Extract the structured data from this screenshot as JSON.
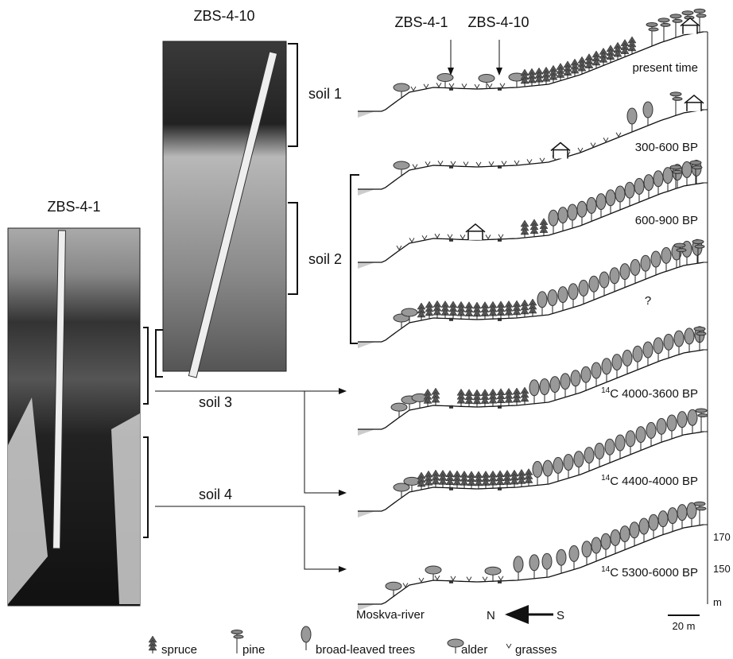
{
  "photos": [
    {
      "title": "ZBS-4-10"
    },
    {
      "title": "ZBS-4-1"
    }
  ],
  "soils": [
    "soil 1",
    "soil 2",
    "soil 3",
    "soil 4"
  ],
  "profile_labels": {
    "left": "ZBS-4-1",
    "right": "ZBS-4-10"
  },
  "periods": [
    {
      "label": "present time"
    },
    {
      "label": "300-600 BP"
    },
    {
      "label": "600-900 BP"
    },
    {
      "label": "?"
    },
    {
      "isotope": "14",
      "element": "C",
      "range": "4000-3600 BP"
    },
    {
      "isotope": "14",
      "element": "C",
      "range": "4400-4000 BP"
    },
    {
      "isotope": "14",
      "element": "C",
      "range": "5300-6000 BP"
    }
  ],
  "elevation_scale": {
    "ticks": [
      "170",
      "150"
    ],
    "unit": "m"
  },
  "river": "Moskva-river",
  "direction": {
    "from": "S",
    "to": "N"
  },
  "scale_bar": "20 m",
  "legend": [
    "spruce",
    "pine",
    "broad-leaved trees",
    "alder",
    "grasses"
  ]
}
